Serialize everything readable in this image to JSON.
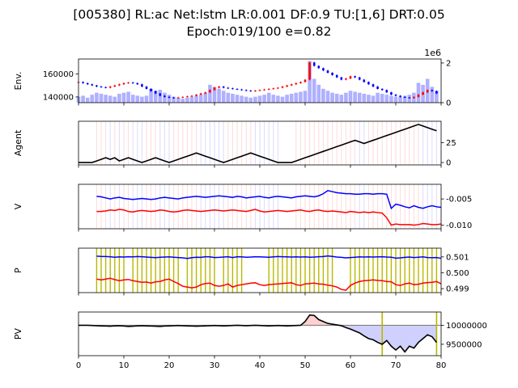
{
  "title_line1": "[005380] RL:ac Net:lstm LR:0.001 DF:0.9 TU:[1,6] DRT:0.05",
  "title_line2": "Epoch:019/100 e=0.82",
  "colors": {
    "up": "#ff0000",
    "down": "#0000ff",
    "volume": "#b0b0ff",
    "gold": "#b8b800",
    "pv": "#000000",
    "fill_pos": "#ffd0d0",
    "fill_neg": "#d0d0ff",
    "base": "#808080"
  },
  "chart_data": [
    {
      "type": "candlestick+bar",
      "ylabel": "Env.",
      "xlim": [
        0,
        80
      ],
      "ylim": [
        135000,
        173000
      ],
      "yticks": [
        "140000",
        "160000"
      ],
      "y2ticks": [
        "0",
        "2"
      ],
      "y2_offset_label": "1e6",
      "y2lim": [
        0,
        2200000
      ],
      "close": [
        153000,
        152000,
        151000,
        150000,
        149000,
        148500,
        148000,
        149000,
        150000,
        151000,
        152000,
        152500,
        152000,
        151000,
        149000,
        147000,
        145000,
        143000,
        141000,
        140000,
        139500,
        139000,
        139500,
        140000,
        140500,
        141000,
        142000,
        143000,
        144000,
        146000,
        148000,
        149000,
        148000,
        147500,
        147000,
        146500,
        146000,
        145500,
        145000,
        145500,
        146000,
        146500,
        147000,
        147500,
        148000,
        149000,
        150000,
        151000,
        152000,
        153000,
        155000,
        170000,
        167000,
        165000,
        163000,
        161000,
        159000,
        157000,
        155000,
        156000,
        158000,
        157000,
        155000,
        153000,
        151000,
        149000,
        147000,
        146000,
        144000,
        142000,
        141000,
        140000,
        139500,
        139000,
        140000,
        142000,
        144000,
        146000,
        145000,
        143000
      ],
      "volume": [
        300000,
        350000,
        250000,
        400000,
        500000,
        450000,
        400000,
        350000,
        300000,
        450000,
        500000,
        550000,
        400000,
        350000,
        300000,
        350000,
        700000,
        600000,
        650000,
        500000,
        400000,
        300000,
        250000,
        200000,
        250000,
        300000,
        350000,
        400000,
        500000,
        900000,
        800000,
        700000,
        600000,
        500000,
        450000,
        400000,
        350000,
        300000,
        250000,
        300000,
        350000,
        400000,
        500000,
        400000,
        350000,
        300000,
        400000,
        450000,
        500000,
        550000,
        600000,
        2100000,
        1200000,
        900000,
        700000,
        600000,
        500000,
        450000,
        400000,
        500000,
        600000,
        550000,
        500000,
        450000,
        400000,
        350000,
        500000,
        450000,
        400000,
        350000,
        300000,
        300000,
        350000,
        400000,
        500000,
        1000000,
        900000,
        1200000,
        800000,
        600000
      ]
    },
    {
      "type": "line",
      "ylabel": "Agent",
      "xlim": [
        0,
        80
      ],
      "ylim": [
        -3,
        52
      ],
      "yticks": [
        "0",
        "25"
      ],
      "values": [
        0,
        0,
        0,
        0,
        2,
        4,
        6,
        4,
        6,
        2,
        4,
        6,
        4,
        2,
        0,
        2,
        4,
        6,
        4,
        2,
        0,
        2,
        4,
        6,
        8,
        10,
        12,
        10,
        8,
        6,
        4,
        2,
        0,
        2,
        4,
        6,
        8,
        10,
        12,
        10,
        8,
        6,
        4,
        2,
        0,
        0,
        0,
        0,
        2,
        4,
        6,
        8,
        10,
        12,
        14,
        16,
        18,
        20,
        22,
        24,
        26,
        28,
        26,
        24,
        26,
        28,
        30,
        32,
        34,
        36,
        38,
        40,
        42,
        44,
        46,
        48,
        46,
        44,
        42,
        40
      ]
    },
    {
      "type": "line",
      "ylabel": "V",
      "xlim": [
        0,
        80
      ],
      "ylim": [
        -0.0107,
        -0.0022
      ],
      "yticks": [
        "-0.010",
        "-0.005"
      ],
      "series": [
        {
          "color": "#0000ff",
          "x_start": 4,
          "values": [
            -0.0045,
            -0.0046,
            -0.0048,
            -0.005,
            -0.0048,
            -0.0047,
            -0.0049,
            -0.005,
            -0.0051,
            -0.005,
            -0.0049,
            -0.005,
            -0.0051,
            -0.005,
            -0.0048,
            -0.0047,
            -0.0048,
            -0.0049,
            -0.005,
            -0.0048,
            -0.0047,
            -0.0046,
            -0.0045,
            -0.0046,
            -0.0047,
            -0.0046,
            -0.0045,
            -0.0044,
            -0.0045,
            -0.0046,
            -0.0047,
            -0.0045,
            -0.0046,
            -0.0048,
            -0.0047,
            -0.0046,
            -0.0045,
            -0.0047,
            -0.0048,
            -0.0046,
            -0.0045,
            -0.0046,
            -0.0047,
            -0.0048,
            -0.0046,
            -0.0045,
            -0.0044,
            -0.0045,
            -0.0046,
            -0.0044,
            -0.004,
            -0.0034,
            -0.0036,
            -0.0038,
            -0.0039,
            -0.004,
            -0.004,
            -0.0041,
            -0.0041,
            -0.004,
            -0.004,
            -0.0041,
            -0.004,
            -0.004,
            -0.0041,
            -0.0068,
            -0.006,
            -0.0062,
            -0.0065,
            -0.0067,
            -0.0063,
            -0.0066,
            -0.0068,
            -0.0065,
            -0.0063,
            -0.0065,
            -0.0066
          ]
        },
        {
          "color": "#ff0000",
          "x_start": 4,
          "values": [
            -0.0074,
            -0.0074,
            -0.0073,
            -0.0071,
            -0.0072,
            -0.007,
            -0.0071,
            -0.0074,
            -0.0075,
            -0.0073,
            -0.0072,
            -0.0073,
            -0.0074,
            -0.0073,
            -0.0071,
            -0.0072,
            -0.0074,
            -0.0075,
            -0.0074,
            -0.0072,
            -0.0071,
            -0.0072,
            -0.0073,
            -0.0074,
            -0.0073,
            -0.0072,
            -0.0071,
            -0.0072,
            -0.0073,
            -0.0072,
            -0.0071,
            -0.0072,
            -0.0073,
            -0.0074,
            -0.0072,
            -0.007,
            -0.0073,
            -0.0075,
            -0.0074,
            -0.0073,
            -0.0072,
            -0.0073,
            -0.0074,
            -0.0073,
            -0.0072,
            -0.0071,
            -0.0073,
            -0.0074,
            -0.0072,
            -0.0071,
            -0.0073,
            -0.0074,
            -0.0073,
            -0.0074,
            -0.0075,
            -0.0076,
            -0.0074,
            -0.0075,
            -0.0076,
            -0.0075,
            -0.0076,
            -0.0075,
            -0.0076,
            -0.0077,
            -0.0086,
            -0.01,
            -0.0098,
            -0.0099,
            -0.0099,
            -0.0099,
            -0.01,
            -0.0099,
            -0.0097,
            -0.0098,
            -0.0099,
            -0.0099,
            -0.0098
          ]
        }
      ]
    },
    {
      "type": "line",
      "ylabel": "P",
      "xlim": [
        0,
        80
      ],
      "ylim": [
        0.49875,
        0.50155
      ],
      "yticks": [
        "0.499",
        "0.500",
        "0.501"
      ],
      "gold_vlines_x": [
        4,
        5,
        6,
        7,
        8,
        9,
        10,
        12,
        13,
        14,
        15,
        16,
        17,
        18,
        19,
        20,
        21,
        22,
        24,
        25,
        26,
        27,
        28,
        29,
        30,
        32,
        33,
        34,
        35,
        36,
        42,
        43,
        44,
        45,
        46,
        47,
        48,
        49,
        50,
        51,
        52,
        53,
        54,
        55,
        56,
        60,
        61,
        62,
        63,
        64,
        65,
        66,
        67,
        68,
        69,
        70,
        71,
        72,
        73,
        74,
        75,
        76,
        77,
        78,
        79
      ],
      "series": [
        {
          "color": "#0000ff",
          "x_start": 4,
          "values": [
            0.50105,
            0.50103,
            0.50102,
            0.50101,
            0.50098,
            0.501,
            0.50099,
            0.50101,
            0.501,
            0.50102,
            0.50101,
            0.50099,
            0.50097,
            0.50095,
            0.50098,
            0.50099,
            0.501,
            0.50098,
            0.50096,
            0.50094,
            0.5009,
            0.50095,
            0.50098,
            0.50097,
            0.50101,
            0.501,
            0.50096,
            0.50097,
            0.50099,
            0.50101,
            0.50096,
            0.50101,
            0.501,
            0.50098,
            0.50099,
            0.50101,
            0.501,
            0.50099,
            0.50098,
            0.501,
            0.50102,
            0.50101,
            0.501,
            0.50099,
            0.501,
            0.50099,
            0.501,
            0.50098,
            0.50099,
            0.50101,
            0.50102,
            0.50106,
            0.50103,
            0.50099,
            0.50097,
            0.50094,
            0.50096,
            0.50098,
            0.501,
            0.50099,
            0.501,
            0.50099,
            0.501,
            0.50101,
            0.50099,
            0.50098,
            0.50092,
            0.50094,
            0.50097,
            0.50099,
            0.50096,
            0.50098,
            0.501,
            0.50096,
            0.50095,
            0.50096,
            0.50091
          ]
        },
        {
          "color": "#ff0000",
          "x_start": 4,
          "values": [
            0.4996,
            0.49955,
            0.4996,
            0.49965,
            0.49957,
            0.4995,
            0.49955,
            0.49958,
            0.4995,
            0.49945,
            0.4994,
            0.49942,
            0.49935,
            0.49943,
            0.49945,
            0.49955,
            0.4996,
            0.49945,
            0.49932,
            0.49915,
            0.4991,
            0.49905,
            0.4991,
            0.49925,
            0.49932,
            0.49935,
            0.4992,
            0.49915,
            0.4992,
            0.4993,
            0.4991,
            0.4992,
            0.49925,
            0.4993,
            0.49935,
            0.49937,
            0.49925,
            0.4992,
            0.49925,
            0.49928,
            0.4993,
            0.49932,
            0.49935,
            0.49937,
            0.49925,
            0.4992,
            0.4993,
            0.49932,
            0.49935,
            0.4993,
            0.49928,
            0.49922,
            0.49918,
            0.4991,
            0.49895,
            0.4989,
            0.4992,
            0.49935,
            0.49945,
            0.4995,
            0.49952,
            0.49955,
            0.49952,
            0.4995,
            0.49945,
            0.49943,
            0.49925,
            0.4992,
            0.4993,
            0.49935,
            0.49925,
            0.49928,
            0.49935,
            0.49938,
            0.4994,
            0.49945,
            0.4993
          ]
        }
      ]
    },
    {
      "type": "line",
      "ylabel": "PV",
      "xlim": [
        0,
        80
      ],
      "ylim": [
        9200000,
        10350000
      ],
      "yticks": [
        "9500000",
        "10000000"
      ],
      "baseline": 10000000,
      "gold_vlines_x": [
        67,
        79
      ],
      "values": [
        10000000,
        10000000,
        10000000,
        9995000,
        9990000,
        9985000,
        9980000,
        9975000,
        9985000,
        9990000,
        9980000,
        9970000,
        9975000,
        9985000,
        9990000,
        9985000,
        9980000,
        9975000,
        9970000,
        9980000,
        9985000,
        9990000,
        9995000,
        9990000,
        9985000,
        9980000,
        9975000,
        9980000,
        9985000,
        9990000,
        9995000,
        9990000,
        9985000,
        9990000,
        9995000,
        10000000,
        9995000,
        9990000,
        9995000,
        10000000,
        9995000,
        9990000,
        9985000,
        9990000,
        9995000,
        9990000,
        9985000,
        9990000,
        9995000,
        10000000,
        10100000,
        10270000,
        10260000,
        10150000,
        10100000,
        10050000,
        10030000,
        10010000,
        9990000,
        9940000,
        9900000,
        9850000,
        9800000,
        9720000,
        9650000,
        9620000,
        9550000,
        9500000,
        9600000,
        9450000,
        9350000,
        9450000,
        9300000,
        9450000,
        9400000,
        9550000,
        9650000,
        9750000,
        9700000,
        9550000
      ]
    }
  ],
  "x_axis": {
    "ticks": [
      "0",
      "10",
      "20",
      "30",
      "40",
      "50",
      "60",
      "70",
      "80"
    ]
  }
}
